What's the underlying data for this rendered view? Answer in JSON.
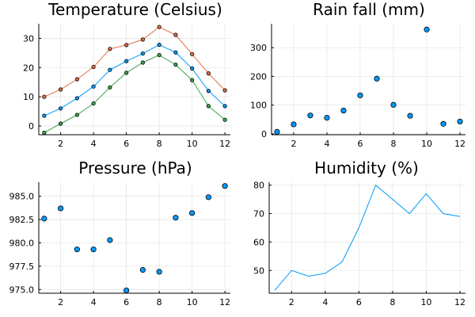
{
  "colors": {
    "blue": "#009af9",
    "orange": "#e26f46",
    "green": "#3da44d",
    "grid": "#e6e6e6",
    "axis": "#000000",
    "marker_stroke": "#000000"
  },
  "chart_data": [
    {
      "type": "line",
      "title": "Temperature (Celsius)",
      "xlabel": "",
      "ylabel": "",
      "x": [
        1,
        2,
        3,
        4,
        5,
        6,
        7,
        8,
        9,
        10,
        11,
        12
      ],
      "xlim": [
        0.67,
        12.33
      ],
      "ylim": [
        -3,
        35
      ],
      "xticks": [
        2,
        4,
        6,
        8,
        10,
        12
      ],
      "xtick_labels": [
        "2",
        "4",
        "6",
        "8",
        "10",
        "12"
      ],
      "yticks": [
        0,
        10,
        20,
        30
      ],
      "ytick_labels": [
        "0",
        "10",
        "20",
        "30"
      ],
      "grid": true,
      "legend": "none",
      "markers": true,
      "series": [
        {
          "color": "#e26f46",
          "values": [
            10.0,
            12.5,
            16.0,
            20.2,
            26.4,
            27.7,
            29.6,
            33.9,
            31.2,
            24.6,
            18.0,
            12.2
          ]
        },
        {
          "color": "#009af9",
          "values": [
            3.5,
            6.0,
            9.5,
            13.5,
            19.2,
            22.2,
            24.8,
            27.8,
            25.2,
            19.7,
            12.0,
            6.8
          ]
        },
        {
          "color": "#3da44d",
          "values": [
            -2.3,
            0.8,
            3.8,
            7.7,
            13.2,
            18.2,
            21.7,
            24.3,
            21.0,
            15.7,
            6.8,
            2.1
          ]
        }
      ]
    },
    {
      "type": "scatter",
      "title": "Rain fall (mm)",
      "xlabel": "",
      "ylabel": "",
      "x": [
        1,
        2,
        3,
        4,
        5,
        6,
        7,
        8,
        9,
        10,
        11,
        12
      ],
      "xlim": [
        0.67,
        12.33
      ],
      "ylim": [
        -3,
        383
      ],
      "xticks": [
        2,
        4,
        6,
        8,
        10,
        12
      ],
      "xtick_labels": [
        "2",
        "4",
        "6",
        "8",
        "10",
        "12"
      ],
      "yticks": [
        0,
        100,
        200,
        300
      ],
      "ytick_labels": [
        "0",
        "100",
        "200",
        "300"
      ],
      "grid": true,
      "legend": "none",
      "series": [
        {
          "color": "#009af9",
          "values": [
            7,
            33,
            64,
            56,
            81,
            134,
            192,
            101,
            63,
            363,
            35,
            43
          ]
        }
      ]
    },
    {
      "type": "scatter",
      "title": "Pressure (hPa)",
      "xlabel": "",
      "ylabel": "",
      "x": [
        1,
        2,
        3,
        4,
        5,
        6,
        7,
        8,
        9,
        10,
        11,
        12
      ],
      "xlim": [
        0.67,
        12.33
      ],
      "ylim": [
        974.6,
        986.5
      ],
      "xticks": [
        2,
        4,
        6,
        8,
        10,
        12
      ],
      "xtick_labels": [
        "2",
        "4",
        "6",
        "8",
        "10",
        "12"
      ],
      "yticks": [
        975.0,
        977.5,
        980.0,
        982.5,
        985.0
      ],
      "ytick_labels": [
        "975.0",
        "977.5",
        "980.0",
        "982.5",
        "985.0"
      ],
      "grid": true,
      "legend": "none",
      "series": [
        {
          "color": "#009af9",
          "values": [
            982.6,
            983.7,
            979.3,
            979.3,
            980.3,
            974.9,
            977.1,
            976.9,
            982.7,
            983.2,
            984.9,
            986.1
          ]
        }
      ]
    },
    {
      "type": "line",
      "title": "Humidity (%)",
      "xlabel": "",
      "ylabel": "",
      "x": [
        1,
        2,
        3,
        4,
        5,
        6,
        7,
        8,
        9,
        10,
        11,
        12
      ],
      "xlim": [
        0.67,
        12.33
      ],
      "ylim": [
        42.0,
        81.0
      ],
      "xticks": [
        2,
        4,
        6,
        8,
        10,
        12
      ],
      "xtick_labels": [
        "2",
        "4",
        "6",
        "8",
        "10",
        "12"
      ],
      "yticks": [
        50,
        60,
        70,
        80
      ],
      "ytick_labels": [
        "50",
        "60",
        "70",
        "80"
      ],
      "grid": true,
      "legend": "none",
      "markers": false,
      "series": [
        {
          "color": "#009af9",
          "values": [
            43.0,
            50.0,
            48.0,
            49.0,
            53.0,
            65.0,
            80.0,
            75.0,
            70.0,
            77.0,
            70.0,
            69.0
          ]
        }
      ]
    }
  ]
}
